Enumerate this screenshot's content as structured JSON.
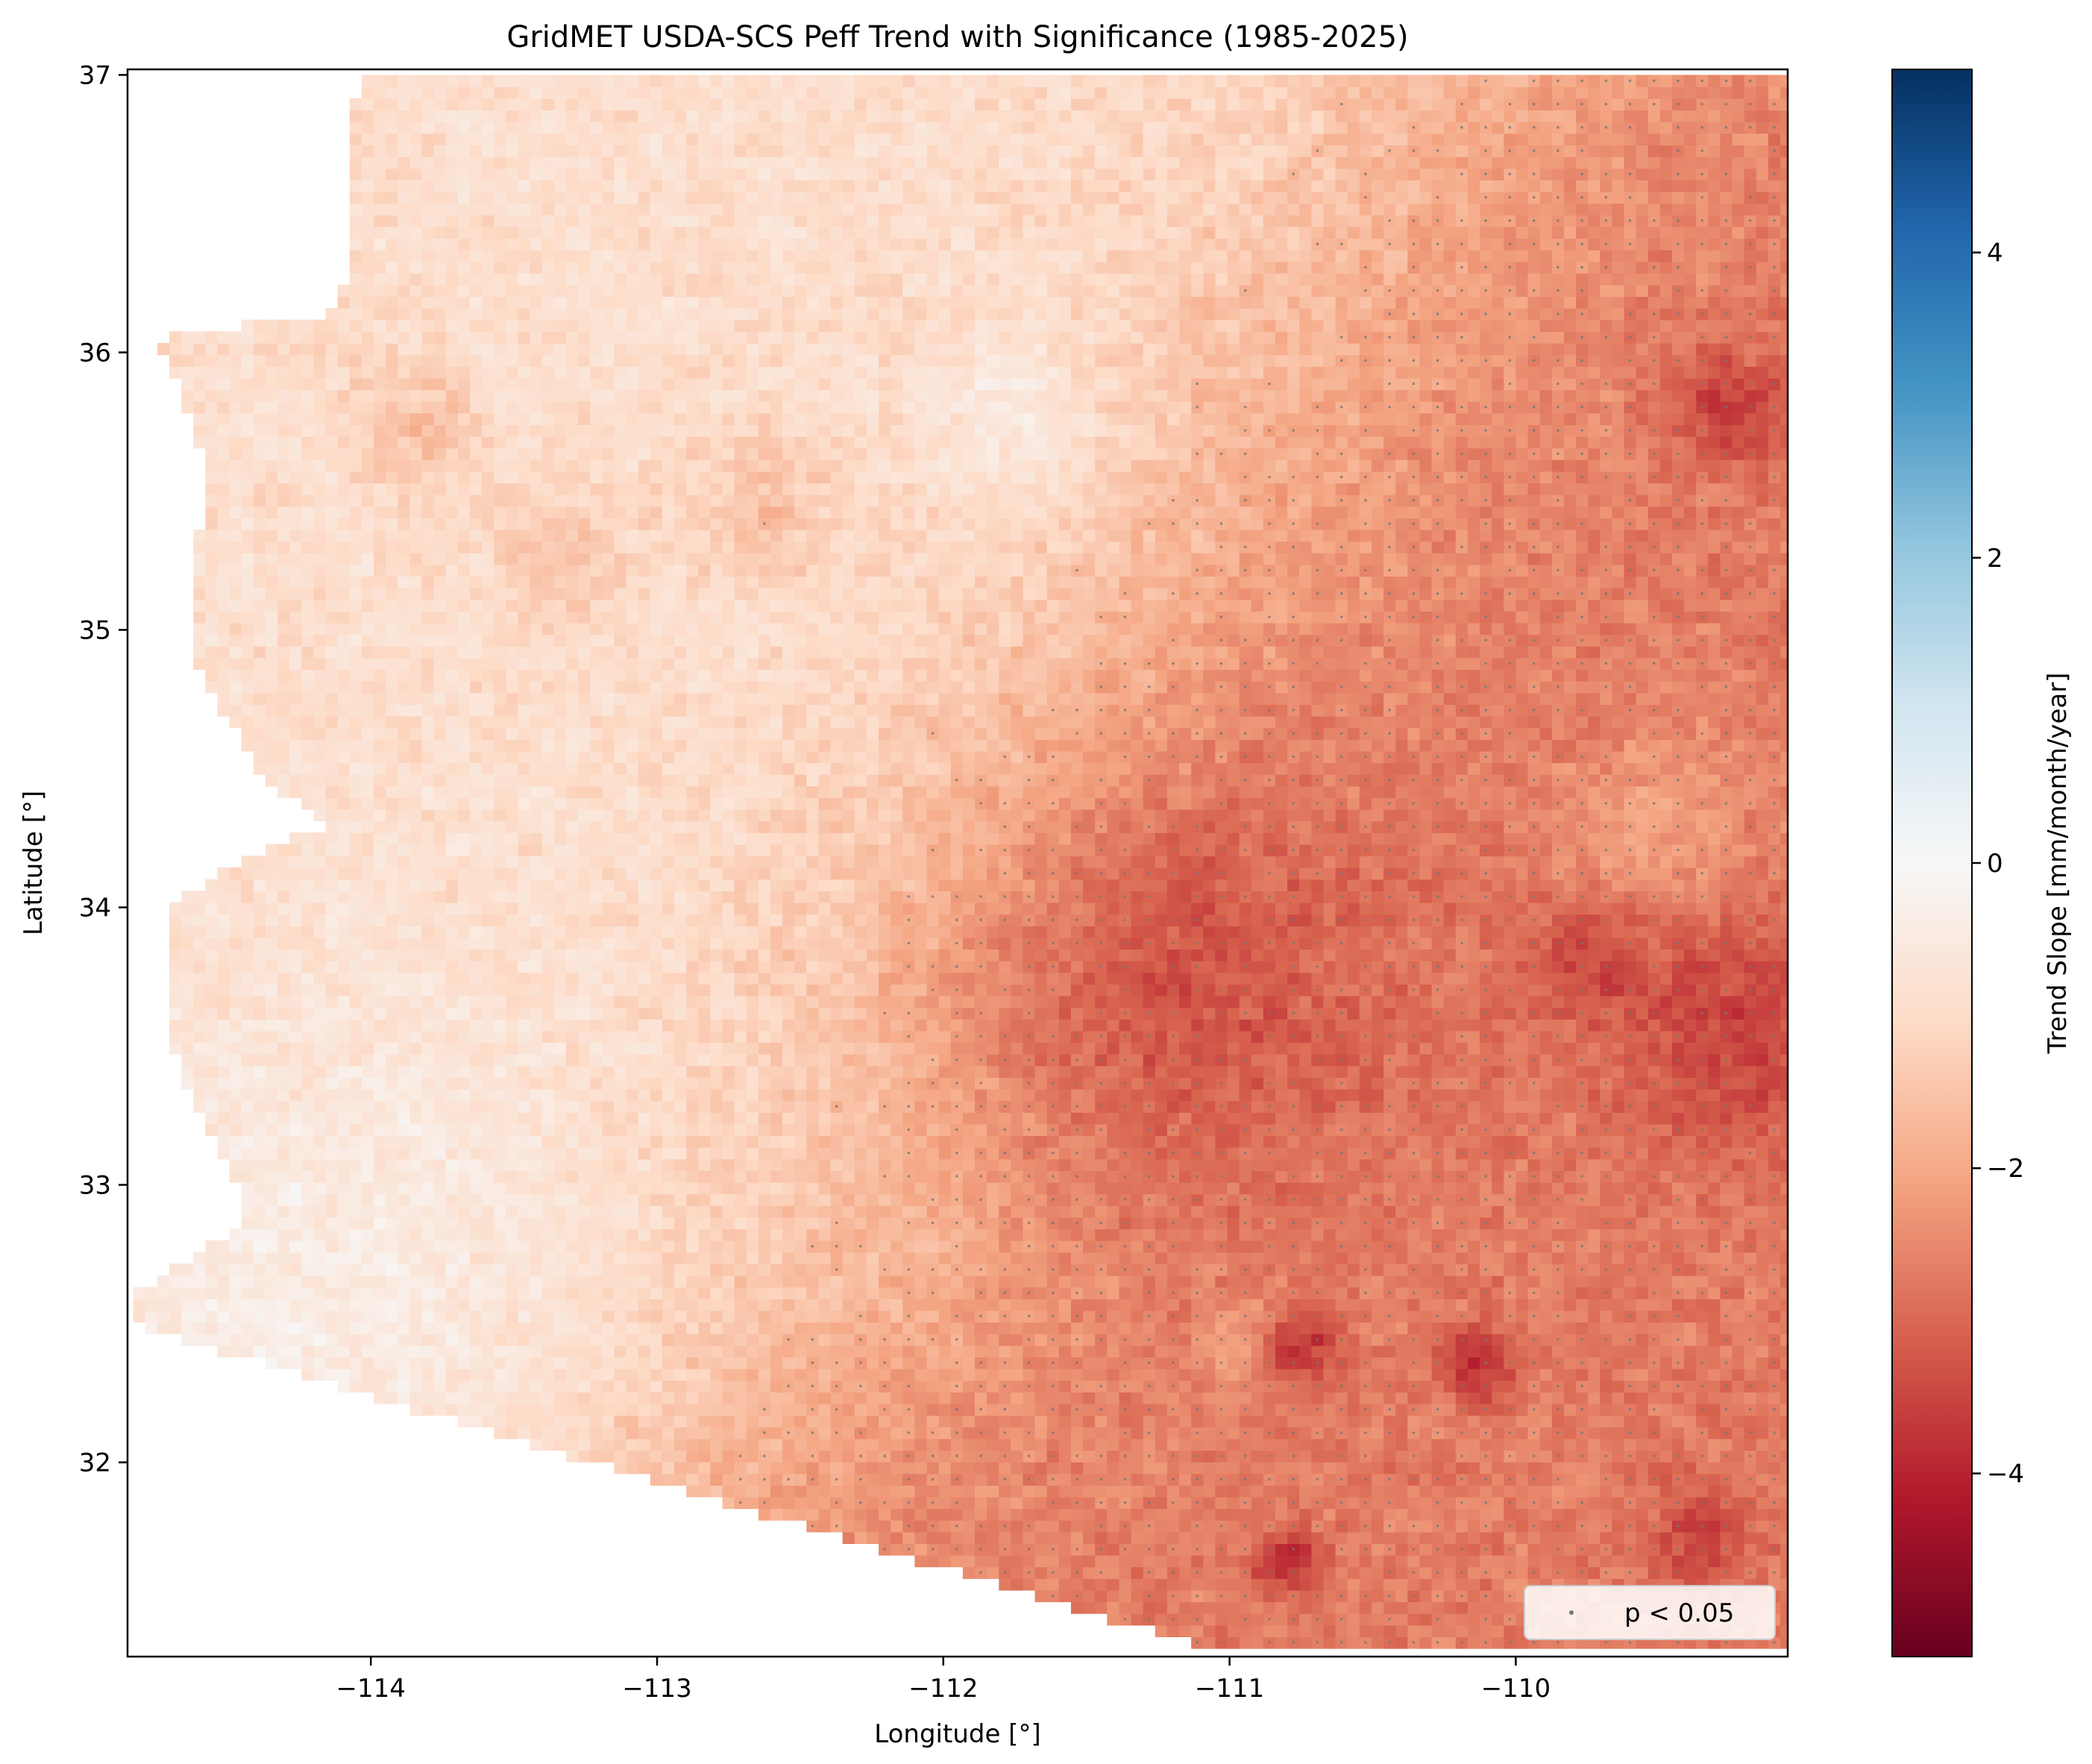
{
  "chart_data": {
    "type": "heatmap",
    "title": "GridMET USDA-SCS Peff Trend with Significance (1985-2025)",
    "xlabel": "Longitude [°]",
    "ylabel": "Latitude [°]",
    "xlim": [
      -114.85,
      -109.05
    ],
    "ylim": [
      31.3,
      37.02
    ],
    "xticks": [
      -114,
      -113,
      -112,
      -111,
      -110
    ],
    "xtick_labels": [
      "−114",
      "−113",
      "−112",
      "−111",
      "−110"
    ],
    "yticks": [
      32,
      33,
      34,
      35,
      36,
      37
    ],
    "ytick_labels": [
      "32",
      "33",
      "34",
      "35",
      "36",
      "37"
    ],
    "colorbar": {
      "label": "Trend Slope [mm/month/year]",
      "colormap": "RdBu",
      "vmin": -5.2,
      "vmax": 5.2,
      "ticks": [
        -4,
        -2,
        0,
        2,
        4
      ],
      "tick_labels": [
        "−4",
        "−2",
        "0",
        "2",
        "4"
      ]
    },
    "legend": {
      "position": "lower-right",
      "entries": [
        "p < 0.05"
      ]
    },
    "grid": false,
    "field_description": {
      "west_region_trend_range": [
        -1.0,
        0.5
      ],
      "northwest_plateau_trend_range": [
        -2.0,
        -0.5
      ],
      "central_rim_band_trend_range": [
        -3.5,
        -1.5
      ],
      "southeast_trend_range": [
        -4.8,
        -1.5
      ],
      "significant_region": "dense in the east and along the central highland band"
    }
  }
}
